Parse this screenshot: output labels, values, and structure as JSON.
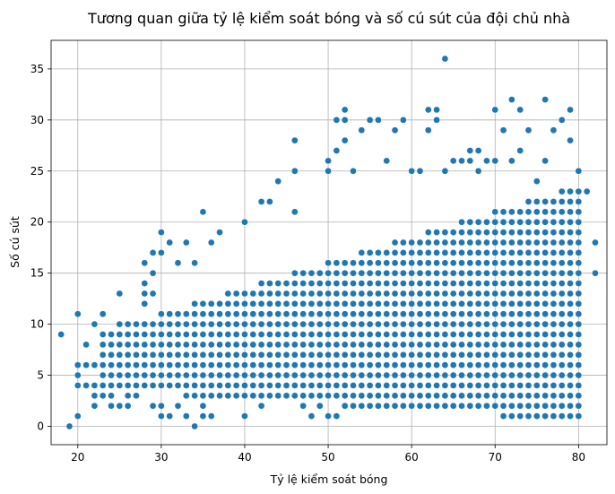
{
  "chart_data": {
    "type": "scatter",
    "title": "Tương quan giữa tỷ lệ kiểm soát bóng và số cú sút của đội chủ nhà",
    "xlabel": "Tỷ lệ kiểm soát bóng",
    "ylabel": "Số cú sút",
    "xlim": [
      16.8,
      83.4
    ],
    "ylim": [
      -1.8,
      37.8
    ],
    "xticks": [
      20,
      30,
      40,
      50,
      60,
      70,
      80
    ],
    "yticks": [
      0,
      5,
      10,
      15,
      20,
      25,
      30,
      35
    ],
    "grid": true,
    "marker_color": "#1f77b4",
    "series": [
      {
        "points": [
          [
            18,
            9
          ],
          [
            19,
            0
          ],
          [
            20,
            1
          ],
          [
            20,
            4
          ],
          [
            20,
            5
          ],
          [
            20,
            6
          ],
          [
            20,
            11
          ],
          [
            21,
            4
          ],
          [
            21,
            6
          ],
          [
            21,
            8
          ],
          [
            22,
            2
          ],
          [
            22,
            3
          ],
          [
            22,
            4
          ],
          [
            22,
            6
          ],
          [
            22,
            10
          ],
          [
            23,
            3
          ],
          [
            23,
            4
          ],
          [
            23,
            6
          ],
          [
            23,
            9
          ],
          [
            23,
            11
          ],
          [
            24,
            2
          ],
          [
            24,
            3
          ],
          [
            24,
            4
          ],
          [
            24,
            5
          ],
          [
            24,
            6
          ],
          [
            24,
            9
          ],
          [
            25,
            2
          ],
          [
            25,
            6
          ],
          [
            25,
            10
          ],
          [
            25,
            13
          ],
          [
            26,
            2
          ],
          [
            26,
            3
          ],
          [
            26,
            10
          ],
          [
            27,
            3
          ],
          [
            27,
            6
          ],
          [
            27,
            9
          ],
          [
            28,
            12
          ],
          [
            28,
            13
          ],
          [
            28,
            14
          ],
          [
            28,
            16
          ],
          [
            29,
            2
          ],
          [
            29,
            13
          ],
          [
            29,
            15
          ],
          [
            29,
            17
          ],
          [
            30,
            1
          ],
          [
            30,
            2
          ],
          [
            30,
            5
          ],
          [
            30,
            17
          ],
          [
            30,
            19
          ],
          [
            31,
            1
          ],
          [
            31,
            18
          ],
          [
            32,
            2
          ],
          [
            32,
            16
          ],
          [
            33,
            1
          ],
          [
            33,
            18
          ],
          [
            34,
            0
          ],
          [
            34,
            16
          ],
          [
            35,
            1
          ],
          [
            35,
            2
          ],
          [
            35,
            21
          ],
          [
            36,
            1
          ],
          [
            36,
            18
          ],
          [
            37,
            19
          ],
          [
            40,
            1
          ],
          [
            40,
            20
          ],
          [
            42,
            2
          ],
          [
            42,
            22
          ],
          [
            43,
            22
          ],
          [
            44,
            24
          ],
          [
            46,
            3
          ],
          [
            46,
            21
          ],
          [
            46,
            25
          ],
          [
            46,
            28
          ],
          [
            47,
            2
          ],
          [
            48,
            1
          ],
          [
            48,
            3
          ],
          [
            49,
            2
          ],
          [
            50,
            1
          ],
          [
            50,
            25
          ],
          [
            50,
            26
          ],
          [
            51,
            1
          ],
          [
            51,
            27
          ],
          [
            51,
            30
          ],
          [
            52,
            28
          ],
          [
            52,
            30
          ],
          [
            52,
            31
          ],
          [
            53,
            3
          ],
          [
            53,
            25
          ],
          [
            54,
            3
          ],
          [
            54,
            29
          ],
          [
            55,
            30
          ],
          [
            56,
            30
          ],
          [
            57,
            3
          ],
          [
            57,
            26
          ],
          [
            58,
            29
          ],
          [
            59,
            30
          ],
          [
            60,
            5
          ],
          [
            60,
            25
          ],
          [
            61,
            25
          ],
          [
            62,
            29
          ],
          [
            62,
            31
          ],
          [
            63,
            3
          ],
          [
            63,
            30
          ],
          [
            63,
            31
          ],
          [
            64,
            5
          ],
          [
            64,
            25
          ],
          [
            64,
            36
          ],
          [
            65,
            26
          ],
          [
            66,
            26
          ],
          [
            67,
            5
          ],
          [
            67,
            26
          ],
          [
            67,
            27
          ],
          [
            68,
            25
          ],
          [
            68,
            27
          ],
          [
            69,
            4
          ],
          [
            69,
            26
          ],
          [
            70,
            5
          ],
          [
            70,
            26
          ],
          [
            70,
            31
          ],
          [
            71,
            29
          ],
          [
            72,
            26
          ],
          [
            72,
            32
          ],
          [
            73,
            27
          ],
          [
            73,
            31
          ],
          [
            74,
            29
          ],
          [
            75,
            24
          ],
          [
            76,
            26
          ],
          [
            76,
            32
          ],
          [
            77,
            29
          ],
          [
            78,
            14
          ],
          [
            78,
            30
          ],
          [
            79,
            17
          ],
          [
            79,
            28
          ],
          [
            79,
            31
          ],
          [
            80,
            14
          ],
          [
            80,
            23
          ],
          [
            80,
            25
          ],
          [
            81,
            23
          ],
          [
            82,
            15
          ],
          [
            82,
            18
          ]
        ],
        "dense_band": {
          "x": [
            23,
            80
          ],
          "y_low": [
            4,
            1
          ],
          "y_high": [
            9,
            23
          ]
        }
      }
    ]
  }
}
